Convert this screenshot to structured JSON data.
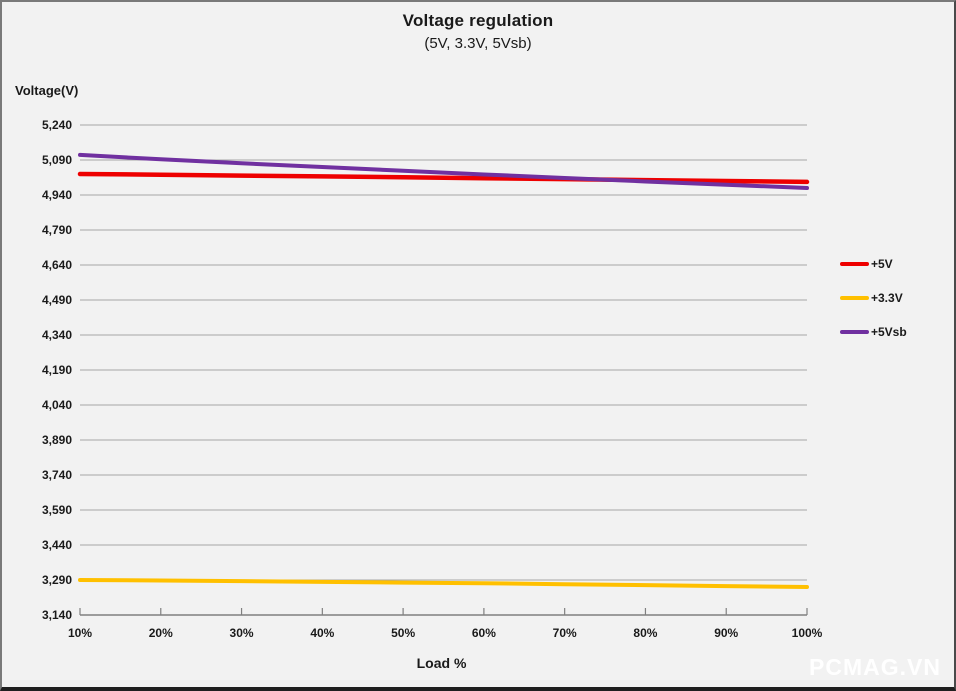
{
  "chart_data": {
    "type": "line",
    "title": "Voltage regulation",
    "subtitle": "(5V, 3.3V, 5Vsb)",
    "ylabel": "Voltage(V)",
    "xlabel": "Load %",
    "x": [
      10,
      20,
      30,
      40,
      50,
      60,
      70,
      80,
      90,
      100
    ],
    "x_tick_labels": [
      "10%",
      "20%",
      "30%",
      "40%",
      "50%",
      "60%",
      "70%",
      "80%",
      "90%",
      "100%"
    ],
    "ylim": [
      3140,
      5240
    ],
    "y_ticks": [
      5240,
      5090,
      4940,
      4790,
      4640,
      4490,
      4340,
      4190,
      4040,
      3890,
      3740,
      3590,
      3440,
      3290,
      3140
    ],
    "y_tick_labels": [
      "5,240",
      "5,090",
      "4,940",
      "4,790",
      "4,640",
      "4,490",
      "4,340",
      "4,190",
      "4,040",
      "3,890",
      "3,740",
      "3,590",
      "3,440",
      "3,290",
      "3,140"
    ],
    "grid": true,
    "legend_position": "right",
    "series": [
      {
        "name": "+5V",
        "color": "#ee0000",
        "values": [
          5030,
          5027,
          5023,
          5020,
          5016,
          5012,
          5008,
          5004,
          5000,
          4996
        ]
      },
      {
        "name": "+3.3V",
        "color": "#ffc000",
        "values": [
          3290,
          3288,
          3285,
          3282,
          3279,
          3276,
          3272,
          3268,
          3264,
          3260
        ]
      },
      {
        "name": "+5Vsb",
        "color": "#7030a0",
        "values": [
          5112,
          5093,
          5076,
          5060,
          5044,
          5028,
          5013,
          4998,
          4984,
          4970
        ]
      }
    ]
  },
  "theme": {
    "background": "#f2f2f2",
    "gridline": "#a6a6a6",
    "axis": "#808080",
    "text": "#1a1a1a",
    "watermark_color": "#ffffff"
  },
  "watermark": "PCMAG.VN"
}
